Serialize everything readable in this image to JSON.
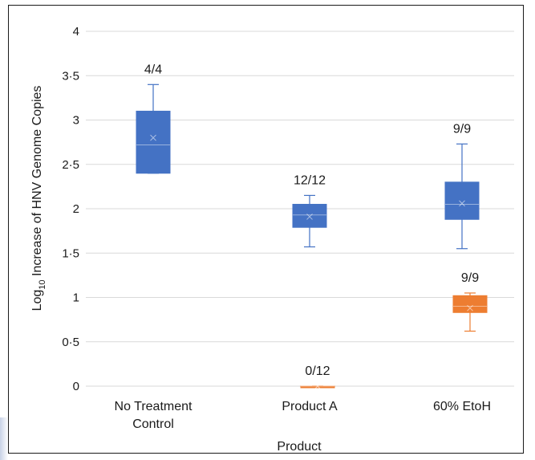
{
  "chart_data": {
    "type": "box",
    "xlabel": "Product",
    "ylabel_prefix": "Log",
    "ylabel_sub": "10",
    "ylabel_suffix": " Increase of HNV Genome Copies",
    "ylim": [
      0,
      4
    ],
    "yticks": [
      {
        "value": 0,
        "label": "0"
      },
      {
        "value": 0.5,
        "label": "0·5"
      },
      {
        "value": 1,
        "label": "1"
      },
      {
        "value": 1.5,
        "label": "1·5"
      },
      {
        "value": 2,
        "label": "2"
      },
      {
        "value": 2.5,
        "label": "2·5"
      },
      {
        "value": 3,
        "label": "3"
      },
      {
        "value": 3.5,
        "label": "3·5"
      },
      {
        "value": 4,
        "label": "4"
      }
    ],
    "grid": true,
    "categories": [
      {
        "lines": [
          "No Treatment",
          "Control"
        ]
      },
      {
        "lines": [
          "Product A"
        ]
      },
      {
        "lines": [
          "60% EtoH"
        ]
      }
    ],
    "boxes": [
      {
        "category": 0,
        "color": "#4472c4",
        "min": 2.4,
        "q1": 2.4,
        "median": 2.72,
        "mean": 2.8,
        "q3": 3.1,
        "max": 3.4,
        "count_label": "4/4"
      },
      {
        "category": 1,
        "color": "#4472c4",
        "min": 1.57,
        "q1": 1.79,
        "median": 1.93,
        "mean": 1.91,
        "q3": 2.05,
        "max": 2.15,
        "count_label": "12/12"
      },
      {
        "category": 1,
        "color": "#ed7d31",
        "min": 0,
        "q1": 0,
        "median": 0,
        "mean": 0,
        "q3": 0,
        "max": 0,
        "count_label": "0/12"
      },
      {
        "category": 2,
        "color": "#4472c4",
        "min": 1.55,
        "q1": 1.88,
        "median": 2.05,
        "mean": 2.06,
        "q3": 2.3,
        "max": 2.73,
        "count_label": "9/9"
      },
      {
        "category": 2,
        "color": "#ed7d31",
        "min": 0.62,
        "q1": 0.83,
        "median": 0.9,
        "mean": 0.88,
        "q3": 1.02,
        "max": 1.05,
        "count_label": "9/9"
      }
    ]
  }
}
